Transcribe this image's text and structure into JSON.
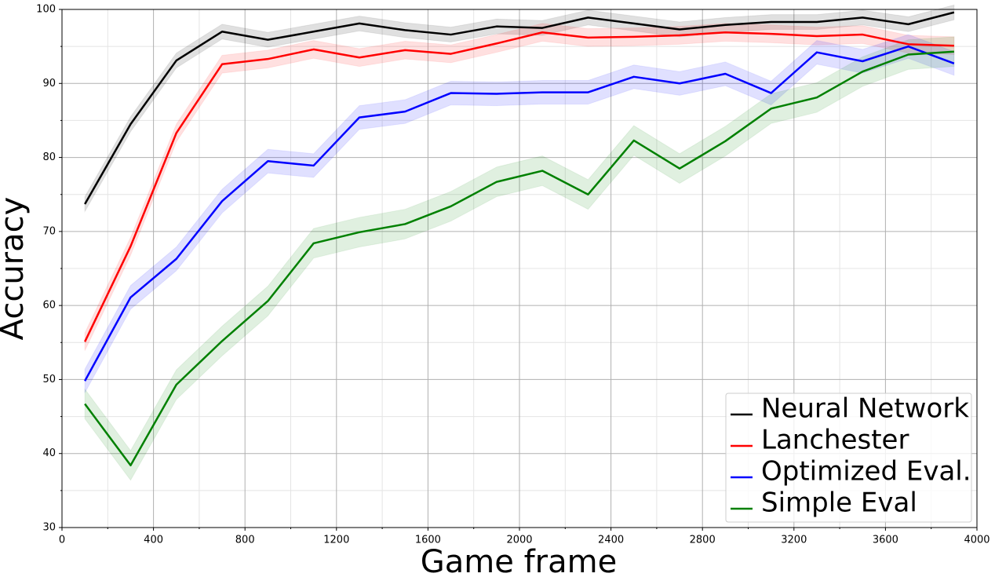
{
  "chart_data": {
    "type": "line",
    "xlabel": "Game frame",
    "ylabel": "Accuracy",
    "x": [
      100,
      300,
      500,
      700,
      900,
      1100,
      1300,
      1500,
      1700,
      1900,
      2100,
      2300,
      2500,
      2700,
      2900,
      3100,
      3300,
      3500,
      3700,
      3900
    ],
    "series": [
      {
        "name": "Neural Network",
        "color": "#000000",
        "error": 1.0,
        "values": [
          73.7,
          84.5,
          93.1,
          97.0,
          95.9,
          97.0,
          98.1,
          97.2,
          96.6,
          97.7,
          97.5,
          98.9,
          98.1,
          97.3,
          97.9,
          98.3,
          98.3,
          98.9,
          98.0,
          99.6
        ]
      },
      {
        "name": "Lanchester",
        "color": "#ff0000",
        "error": 1.2,
        "values": [
          55.1,
          68.0,
          83.3,
          92.6,
          93.3,
          94.6,
          93.5,
          94.5,
          94.0,
          95.4,
          96.9,
          96.2,
          96.3,
          96.5,
          96.9,
          96.7,
          96.4,
          96.6,
          95.3,
          95.1
        ]
      },
      {
        "name": "Optimized Eval.",
        "color": "#0000ff",
        "error": 1.6,
        "values": [
          49.8,
          61.1,
          66.3,
          74.1,
          79.5,
          78.9,
          85.4,
          86.2,
          88.7,
          88.6,
          88.8,
          88.8,
          90.9,
          90.0,
          91.3,
          88.7,
          94.2,
          93.0,
          95.0,
          92.7
        ]
      },
      {
        "name": "Simple Eval",
        "color": "#008000",
        "error": 2.0,
        "values": [
          46.7,
          38.4,
          49.3,
          55.2,
          60.6,
          68.4,
          69.9,
          71.0,
          73.4,
          76.7,
          78.2,
          75.0,
          82.3,
          78.5,
          82.2,
          86.6,
          88.1,
          91.6,
          93.9,
          94.3
        ]
      }
    ],
    "xlim": [
      0,
      4000
    ],
    "xticks": [
      0,
      400,
      800,
      1200,
      1600,
      2000,
      2400,
      2800,
      3200,
      3600,
      4000
    ],
    "ylim": [
      30,
      100
    ],
    "yticks": [
      30,
      40,
      50,
      60,
      70,
      80,
      90,
      100
    ],
    "grid": true,
    "minor_grid": true,
    "legend": "lower right"
  }
}
